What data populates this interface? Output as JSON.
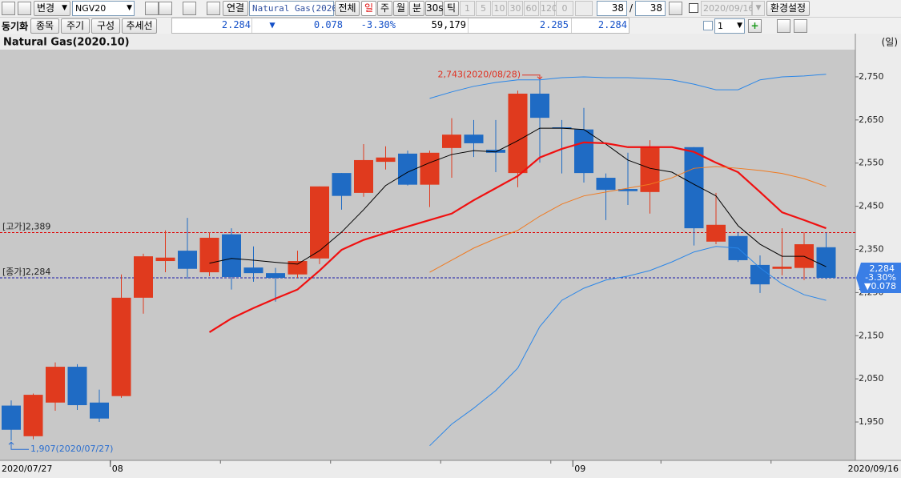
{
  "toolbar": {
    "change_button": "변경",
    "code": "NGV20",
    "link_button": "연결",
    "name": "Natural Gas(2020",
    "all_button": "전체",
    "periods": [
      "일",
      "주",
      "월",
      "분",
      "30s",
      "틱"
    ],
    "intervals": [
      "1",
      "5",
      "10",
      "30",
      "60",
      "120"
    ],
    "spin": "0",
    "count": "38",
    "separator": "/",
    "total": "38",
    "date": "2020/09/16",
    "settings_button": "환경설정"
  },
  "quote_bar": {
    "sync": "동기화",
    "tabs": [
      "종목",
      "주기",
      "구성",
      "추세선"
    ],
    "price": "2.284",
    "arrow": "▼",
    "change": "0.078",
    "change_pct": "-3.30%",
    "volume": "59,179",
    "ask": "2.285",
    "bid": "2.284",
    "screen_count": "1"
  },
  "chart_data": {
    "type": "candlestick",
    "title": "Natural Gas(2020.10)",
    "period_label": "(일)",
    "categories": [
      "2020/07/27",
      null,
      null,
      null,
      null,
      "08",
      null,
      null,
      null,
      null,
      null,
      null,
      null,
      null,
      null,
      null,
      null,
      null,
      null,
      null,
      null,
      null,
      null,
      null,
      null,
      null,
      "09",
      null,
      null,
      null,
      null,
      null,
      null,
      null,
      null,
      null,
      null,
      "2020/09/16"
    ],
    "open": [
      1988,
      1917,
      1995,
      2078,
      1995,
      2010,
      2238,
      2323,
      2347,
      2297,
      2385,
      2308,
      2295,
      2292,
      2329,
      2527,
      2481,
      2553,
      2572,
      2500,
      2585,
      2616,
      2581,
      2527,
      2711,
      2633,
      2628,
      2516,
      2490,
      2483,
      null,
      2587,
      2368,
      2381,
      2314,
      2305,
      2307,
      2355
    ],
    "high": [
      2000,
      2016,
      2088,
      2084,
      2025,
      2292,
      2340,
      2394,
      2423,
      2390,
      2399,
      2357,
      2307,
      2347,
      2496,
      2527,
      2594,
      2589,
      2579,
      2579,
      2654,
      2650,
      2650,
      2718,
      2743,
      2650,
      2678,
      2526,
      2574,
      2603,
      null,
      2587,
      2481,
      2390,
      2336,
      2399,
      2390,
      2389
    ],
    "low": [
      1907,
      1910,
      1976,
      1978,
      1950,
      2006,
      2201,
      2297,
      2282,
      2288,
      2257,
      2275,
      2229,
      2284,
      2316,
      2442,
      2472,
      2535,
      2498,
      2448,
      2516,
      2564,
      2529,
      2494,
      2551,
      2526,
      2505,
      2418,
      2453,
      2433,
      null,
      2359,
      2362,
      2321,
      2249,
      2290,
      2279,
      2281
    ],
    "close": [
      1932,
      2013,
      2078,
      1989,
      1958,
      2238,
      2334,
      2331,
      2305,
      2377,
      2286,
      2295,
      2284,
      2323,
      2496,
      2474,
      2557,
      2563,
      2500,
      2574,
      2616,
      2596,
      2574,
      2711,
      2655,
      2630,
      2527,
      2488,
      2485,
      2587,
      null,
      2399,
      2407,
      2325,
      2269,
      2310,
      2362,
      2284
    ],
    "up_color": "#e03a1e",
    "down_color": "#1f6bc4",
    "lines": [
      {
        "color": "#000000",
        "width": 1,
        "values": [
          null,
          null,
          null,
          null,
          null,
          null,
          null,
          null,
          null,
          2318,
          2329,
          2325,
          2320,
          2316,
          2347,
          2390,
          2442,
          2498,
          2529,
          2551,
          2570,
          2579,
          2576,
          2602,
          2631,
          2631,
          2628,
          2594,
          2557,
          2538,
          2529,
          2501,
          2474,
          2405,
          2362,
          2334,
          2334,
          2310
        ]
      },
      {
        "color": "#f01010",
        "width": 2.2,
        "values": [
          null,
          null,
          null,
          null,
          null,
          null,
          null,
          null,
          null,
          2158,
          2190,
          2214,
          2236,
          2257,
          2301,
          2349,
          2372,
          2388,
          2403,
          2418,
          2433,
          2464,
          2492,
          2520,
          2563,
          2583,
          2598,
          2596,
          2587,
          2587,
          2587,
          2576,
          2551,
          2529,
          2483,
          2436,
          2418,
          2399
        ]
      },
      {
        "color": "#f07a20",
        "width": 1,
        "values": [
          null,
          null,
          null,
          null,
          null,
          null,
          null,
          null,
          null,
          null,
          null,
          null,
          null,
          null,
          null,
          null,
          null,
          null,
          null,
          2297,
          2325,
          2353,
          2375,
          2394,
          2427,
          2455,
          2474,
          2483,
          2492,
          2501,
          2516,
          2538,
          2542,
          2538,
          2533,
          2526,
          2514,
          2496
        ]
      },
      {
        "color": "#2a86e8",
        "width": 1,
        "values": [
          null,
          null,
          null,
          null,
          null,
          null,
          null,
          null,
          null,
          null,
          null,
          null,
          null,
          null,
          null,
          null,
          null,
          null,
          null,
          2700,
          2715,
          2728,
          2737,
          2743,
          2743,
          2748,
          2750,
          2748,
          2748,
          2746,
          2743,
          2733,
          2720,
          2720,
          2743,
          2750,
          2752,
          2756
        ]
      },
      {
        "color": "#2a86e8",
        "width": 1,
        "values": [
          null,
          null,
          null,
          null,
          null,
          null,
          null,
          null,
          null,
          null,
          null,
          null,
          null,
          null,
          null,
          null,
          null,
          null,
          null,
          1895,
          1945,
          1982,
          2023,
          2075,
          2171,
          2232,
          2260,
          2279,
          2288,
          2301,
          2321,
          2344,
          2357,
          2353,
          2307,
          2270,
          2245,
          2232
        ]
      }
    ],
    "high_line": {
      "label": "[고가]2,389",
      "value": 2389,
      "color": "#e00000"
    },
    "close_line": {
      "label": "[종가]2,284",
      "value": 2284,
      "color": "#1a1aa8"
    },
    "high_marker": {
      "text": "2,743(2020/08/28)",
      "color": "#e03020"
    },
    "low_marker": {
      "text": "1,907(2020/07/27)",
      "color": "#2a6ed0"
    },
    "last_box": {
      "price": "2,284",
      "change_pct": "-3.30%",
      "change": "▼0.078",
      "color": "#3a7ee6"
    },
    "ylim": [
      1861,
      2813
    ],
    "yticks": [
      {
        "value": 1950,
        "label": "1,950"
      },
      {
        "value": 2050,
        "label": "2,050"
      },
      {
        "value": 2150,
        "label": "2,150"
      },
      {
        "value": 2250,
        "label": "2,250"
      },
      {
        "value": 2350,
        "label": "2,350"
      },
      {
        "value": 2450,
        "label": "2,450"
      },
      {
        "value": 2550,
        "label": "2,550"
      },
      {
        "value": 2650,
        "label": "2,650"
      },
      {
        "value": 2750,
        "label": "2,750"
      }
    ],
    "grid": false
  }
}
